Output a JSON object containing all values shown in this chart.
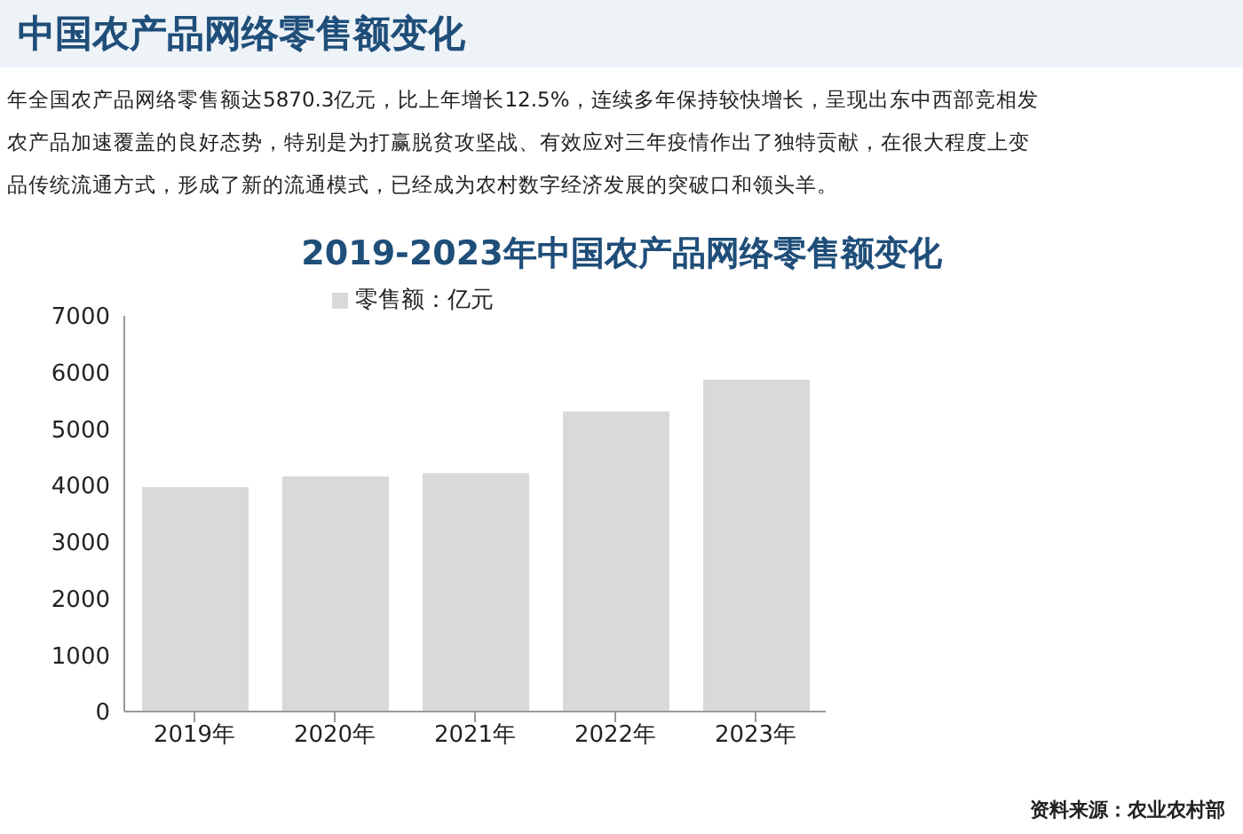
{
  "chart_data": {
    "type": "bar",
    "title": "中国农产品网络零售额变化",
    "subtitle": "2019-2023年中国农产品网络零售额变化",
    "annotations": [
      "年全国农产品网络零售额达5870.3亿元，比上年增长12.5%，连续多年保持较快增长，呈现出东中西部竞相发",
      "农产品加速覆盖的良好态势，特别是为打赢脱贫攻坚战、有效应对三年疫情作出了独特贡献，在很大程度上变",
      "品传统流通方式，形成了新的流通模式，已经成为农村数字经济发展的突破口和领头羊。",
      "资料来源：农业农村部"
    ],
    "categories": [
      "2019年",
      "2020年",
      "2021年",
      "2022年",
      "2023年"
    ],
    "series": [
      {
        "name": "零售额：亿元",
        "color": "#d9d9d9",
        "values": [
          3970,
          4160,
          4220,
          5310,
          5870
        ]
      }
    ],
    "ylim": [
      0,
      7000
    ],
    "yticks": [
      0,
      1000,
      2000,
      3000,
      4000,
      5000,
      6000,
      7000
    ],
    "grid": false,
    "legend": "top"
  }
}
